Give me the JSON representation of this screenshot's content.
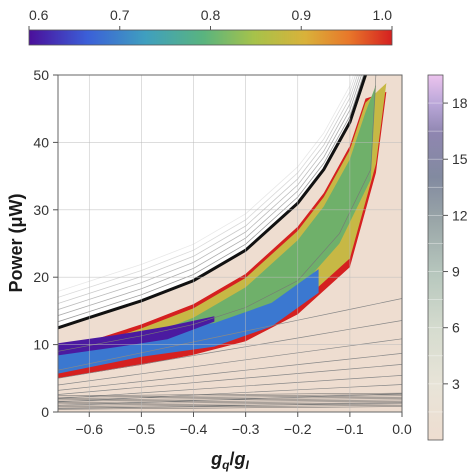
{
  "chart_data": [
    {
      "type": "contour",
      "role": "main plot",
      "xlabel": "g_q/g_I",
      "ylabel": "Power (μW)",
      "xlim": [
        -0.66,
        0.0
      ],
      "ylim": [
        0,
        50
      ],
      "x_ticks": [
        -0.6,
        -0.5,
        -0.4,
        -0.3,
        -0.2,
        -0.1,
        0.0
      ],
      "x_tick_labels": [
        "−0.6",
        "−0.5",
        "−0.4",
        "−0.3",
        "−0.2",
        "−0.1",
        "0.0"
      ],
      "y_ticks": [
        0,
        10,
        20,
        30,
        40,
        50
      ],
      "y_tick_labels": [
        "0",
        "10",
        "20",
        "30",
        "40",
        "50"
      ],
      "grid": true,
      "regions": {
        "background_fill": "#eeddd0",
        "excluded_region_color": "#ffffff",
        "boundary_x": [
          -0.66,
          -0.6,
          -0.5,
          -0.4,
          -0.3,
          -0.2,
          -0.15,
          -0.1,
          -0.07
        ],
        "boundary_y": [
          12.5,
          14.0,
          16.5,
          19.5,
          24.0,
          31.0,
          36.0,
          43.0,
          50.0
        ],
        "level_red_x": [
          -0.66,
          -0.5,
          -0.4,
          -0.3,
          -0.2,
          -0.1,
          -0.05,
          -0.03
        ],
        "level_red_y": [
          7.5,
          9.5,
          11.0,
          13.0,
          17.0,
          24.0,
          38.0,
          50.0
        ],
        "contour_0_9_x": [
          -0.66,
          -0.5,
          -0.4,
          -0.3,
          -0.2,
          -0.12,
          -0.06,
          -0.05
        ],
        "contour_0_9_y": [
          9.0,
          11.3,
          13.0,
          15.5,
          19.5,
          26.5,
          36.0,
          50.0
        ],
        "contour_0_7_x": [
          -0.66,
          -0.5,
          -0.36,
          -0.25,
          -0.16,
          -0.16
        ],
        "contour_0_7_y": [
          8.0,
          10.5,
          12.0,
          15.0,
          20.0,
          26.0
        ]
      }
    },
    {
      "type": "colorbar",
      "role": "top legend",
      "ticks": [
        0.6,
        0.7,
        0.8,
        0.9,
        1.0
      ],
      "tick_labels": [
        "0.6",
        "0.7",
        "0.8",
        "0.9",
        "1.0"
      ],
      "range": [
        0.6,
        1.0
      ],
      "colors": [
        "#4b0f9a",
        "#3b5fd8",
        "#3f9fbf",
        "#59b47f",
        "#a6c24a",
        "#d9b23a",
        "#e8782a",
        "#d52020"
      ]
    },
    {
      "type": "colorbar",
      "role": "right legend",
      "ticks": [
        3,
        6,
        9,
        12,
        15,
        18
      ],
      "tick_labels": [
        "3",
        "6",
        "9",
        "12",
        "15",
        "18"
      ],
      "range": [
        0,
        19.5
      ],
      "colors": [
        "#eeddd0",
        "#e8e4d8",
        "#d6dccf",
        "#b8c8be",
        "#9aa6a8",
        "#828aa0",
        "#8f86b0",
        "#b9a6d8",
        "#ecc4ee"
      ]
    }
  ]
}
